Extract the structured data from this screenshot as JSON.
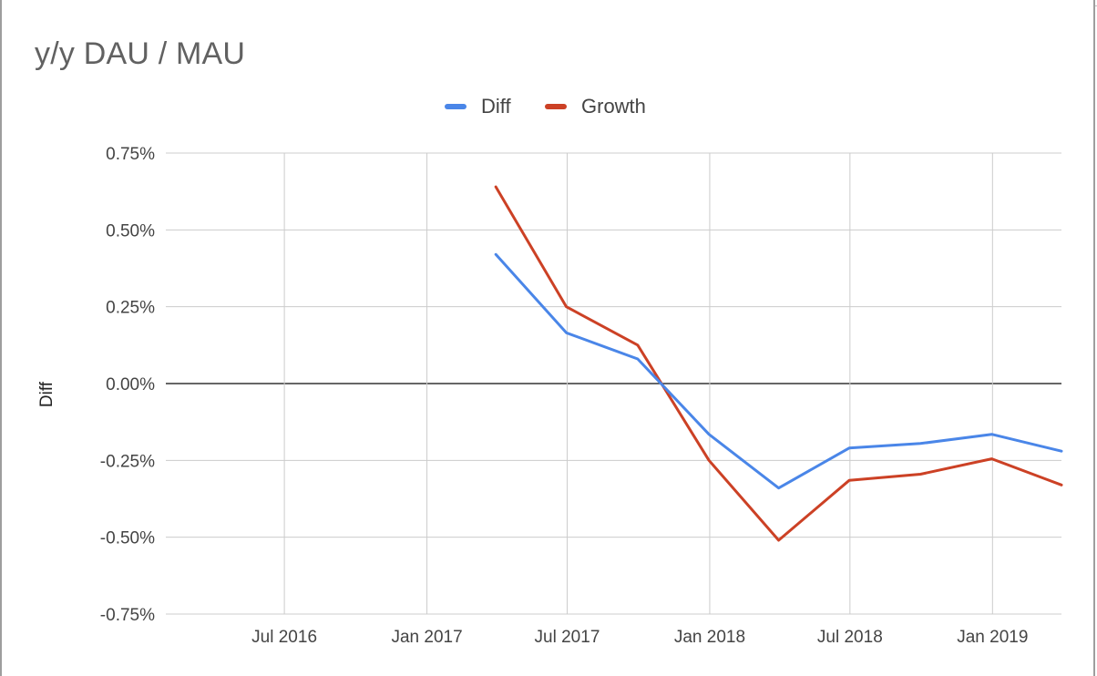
{
  "chart_data": {
    "type": "line",
    "title": "y/y DAU / MAU",
    "xlabel": "",
    "ylabel": "Diff",
    "ylim": [
      -0.75,
      0.75
    ],
    "y_unit": "%",
    "y_ticks": [
      0.75,
      0.5,
      0.25,
      0.0,
      -0.25,
      -0.5,
      -0.75
    ],
    "y_tick_labels": [
      "0.75%",
      "0.50%",
      "0.25%",
      "0.00%",
      "-0.25%",
      "-0.50%",
      "-0.75%"
    ],
    "x_ticks": [
      "2016-07-01",
      "2017-01-01",
      "2017-07-01",
      "2018-01-01",
      "2018-07-01",
      "2019-01-01"
    ],
    "x_tick_labels": [
      "Jul 2016",
      "Jan 2017",
      "Jul 2017",
      "Jan 2018",
      "Jul 2018",
      "Jan 2019"
    ],
    "x_range": [
      "2016-01-30",
      "2019-03-31"
    ],
    "x": [
      "2017-03-31",
      "2017-06-30",
      "2017-09-30",
      "2017-12-31",
      "2018-03-31",
      "2018-06-30",
      "2018-09-30",
      "2018-12-31",
      "2019-03-31"
    ],
    "series": [
      {
        "name": "Diff",
        "color": "#4a86e8",
        "values": [
          0.42,
          0.165,
          0.08,
          -0.165,
          -0.34,
          -0.21,
          -0.195,
          -0.165,
          -0.22
        ]
      },
      {
        "name": "Growth",
        "color": "#cc4125",
        "values": [
          0.64,
          0.25,
          0.125,
          -0.25,
          -0.51,
          -0.315,
          -0.295,
          -0.245,
          -0.33
        ]
      }
    ],
    "zero_line": true,
    "grid": true,
    "legend_position": "top-center"
  }
}
